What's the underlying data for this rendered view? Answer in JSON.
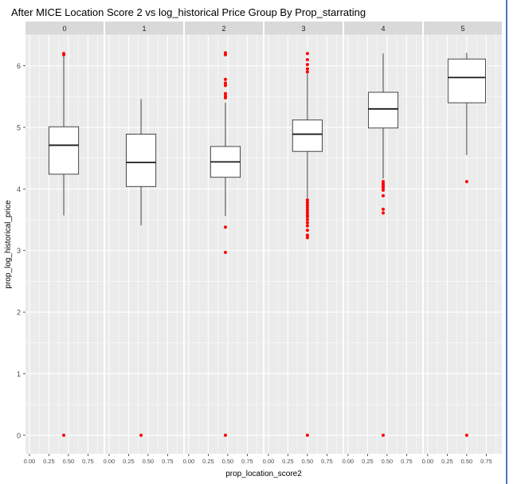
{
  "chart_data": {
    "type": "box",
    "title": "After MICE Location Score 2 vs log_historical Price Group By Prop_starrating",
    "xlabel": "prop_location_score2",
    "ylabel": "prop_log_historical_price",
    "facet_variable": "prop_starrating",
    "ylim": [
      -0.3,
      6.5
    ],
    "yticks": [
      0,
      1,
      2,
      3,
      4,
      5,
      6
    ],
    "xlim": [
      -0.05,
      0.95
    ],
    "xticks": [
      "0.00",
      "0.25",
      "0.50",
      "0.75"
    ],
    "grid": true,
    "outlier_color": "#ff0000",
    "panel_background": "#ebebeb",
    "strip_background": "#d9d9d9",
    "facets": [
      {
        "label": "0",
        "x": 0.44,
        "width": 0.38,
        "lower_whisker": 3.57,
        "q1": 4.24,
        "median": 4.71,
        "q3": 5.01,
        "upper_whisker": 6.19,
        "outliers": [
          6.2,
          6.18,
          0.0
        ]
      },
      {
        "label": "1",
        "x": 0.41,
        "width": 0.38,
        "lower_whisker": 3.41,
        "q1": 4.04,
        "median": 4.43,
        "q3": 4.89,
        "upper_whisker": 5.46,
        "outliers": [
          0.0
        ]
      },
      {
        "label": "2",
        "x": 0.47,
        "width": 0.38,
        "lower_whisker": 3.56,
        "q1": 4.19,
        "median": 4.44,
        "q3": 4.69,
        "upper_whisker": 5.4,
        "outliers": [
          6.21,
          6.18,
          5.78,
          5.72,
          5.68,
          5.55,
          5.51,
          5.48,
          3.38,
          2.97,
          0.0
        ]
      },
      {
        "label": "3",
        "x": 0.5,
        "width": 0.38,
        "lower_whisker": 3.85,
        "q1": 4.61,
        "median": 4.89,
        "q3": 5.12,
        "upper_whisker": 5.87,
        "outliers": [
          6.2,
          6.1,
          6.02,
          5.95,
          5.9,
          3.82,
          3.78,
          3.74,
          3.7,
          3.66,
          3.62,
          3.58,
          3.55,
          3.5,
          3.45,
          3.4,
          3.33,
          3.25,
          3.21,
          0.0
        ]
      },
      {
        "label": "4",
        "x": 0.45,
        "width": 0.38,
        "lower_whisker": 4.17,
        "q1": 4.99,
        "median": 5.3,
        "q3": 5.57,
        "upper_whisker": 6.2,
        "outliers": [
          4.12,
          4.08,
          4.05,
          4.02,
          3.98,
          3.89,
          3.67,
          3.61,
          0.0
        ]
      },
      {
        "label": "5",
        "x": 0.5,
        "width": 0.48,
        "lower_whisker": 4.55,
        "q1": 5.4,
        "median": 5.81,
        "q3": 6.11,
        "upper_whisker": 6.21,
        "outliers": [
          4.12,
          0.0
        ]
      }
    ]
  }
}
